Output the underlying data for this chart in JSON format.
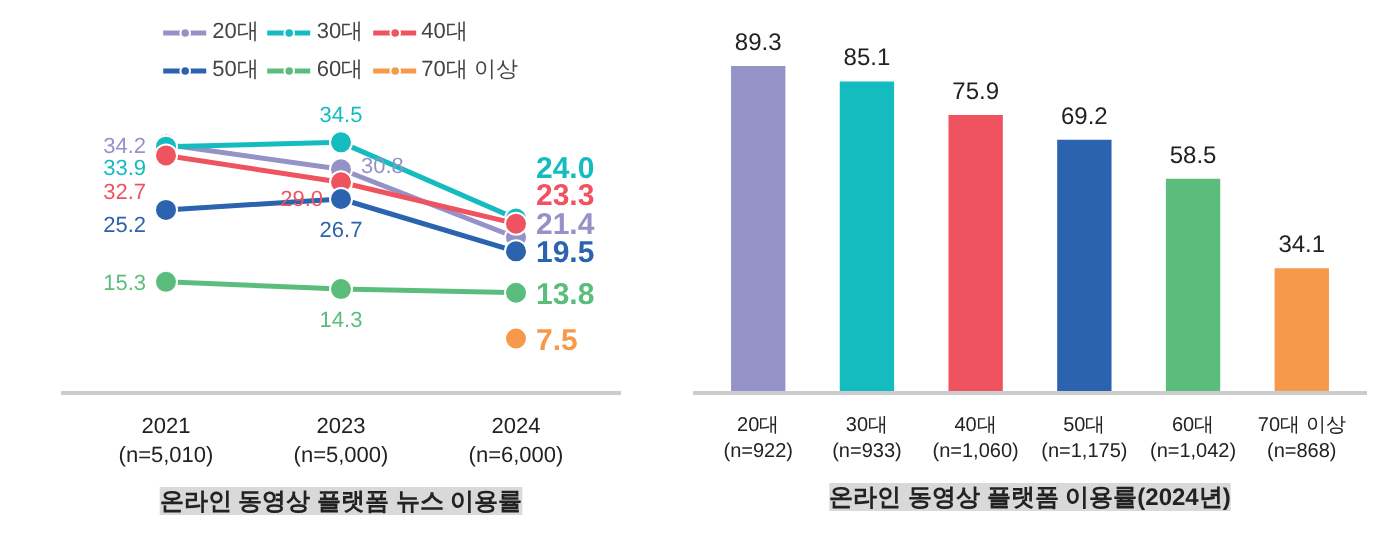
{
  "chart_data": [
    {
      "type": "line",
      "title": "온라인 동영상 플랫폼 뉴스 이용률",
      "categories": [
        "2021\n(n=5,010)",
        "2023\n(n=5,000)",
        "2024\n(n=6,000)"
      ],
      "legend": "top",
      "marker": "circle",
      "tick_labels": "x",
      "series": [
        {
          "name": "20대",
          "color": "#9592c8",
          "values": [
            34.2,
            30.8,
            21.4
          ],
          "value_labels": [
            "34.2",
            "30.8",
            "21.4"
          ]
        },
        {
          "name": "30대",
          "color": "#14bcc0",
          "values": [
            33.9,
            34.5,
            24.0
          ],
          "value_labels": [
            "33.9",
            "34.5",
            "24.0"
          ]
        },
        {
          "name": "40대",
          "color": "#ef535f",
          "values": [
            32.7,
            29.0,
            23.3
          ],
          "value_labels": [
            "32.7",
            "29.0",
            "23.3"
          ]
        },
        {
          "name": "50대",
          "color": "#2b63ae",
          "values": [
            25.2,
            26.7,
            19.5
          ],
          "value_labels": [
            "25.2",
            "26.7",
            "19.5"
          ]
        },
        {
          "name": "60대",
          "color": "#5bbd7c",
          "values": [
            15.3,
            14.3,
            13.8
          ],
          "value_labels": [
            "15.3",
            "14.3",
            "13.8"
          ]
        },
        {
          "name": "70대 이상",
          "color": "#f7994a",
          "values": [
            null,
            null,
            7.5
          ],
          "value_labels": [
            null,
            null,
            "7.5"
          ]
        }
      ]
    },
    {
      "type": "bar",
      "title": "온라인 동영상 플랫폼 이용률(2024년)",
      "categories": [
        "20대\n(n=922)",
        "30대\n(n=933)",
        "40대\n(n=1,060)",
        "50대\n(n=1,175)",
        "60대\n(n=1,042)",
        "70대 이상\n(n=868)"
      ],
      "data_labels": true,
      "tick_labels": "x",
      "values": [
        89.3,
        85.1,
        75.9,
        69.2,
        58.5,
        34.1
      ],
      "colors": [
        "#9592c8",
        "#14bcc0",
        "#ef535f",
        "#2b63ae",
        "#5bbd7c",
        "#f7994a"
      ]
    }
  ]
}
